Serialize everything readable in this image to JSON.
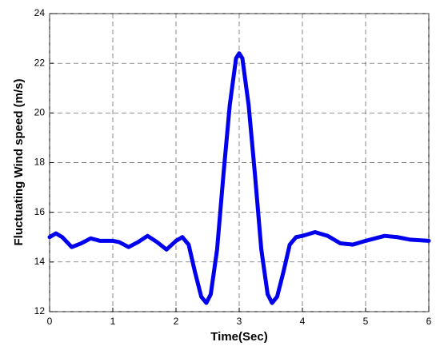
{
  "chart_data": {
    "type": "line",
    "xlabel": "Time(Sec)",
    "ylabel": "Fluctuating Wind speed (m/s)",
    "x": [
      0,
      0.1,
      0.2,
      0.35,
      0.5,
      0.65,
      0.8,
      1.0,
      1.1,
      1.25,
      1.4,
      1.55,
      1.7,
      1.85,
      2.0,
      2.1,
      2.2,
      2.3,
      2.4,
      2.48,
      2.55,
      2.65,
      2.75,
      2.85,
      2.95,
      3.0,
      3.05,
      3.15,
      3.25,
      3.35,
      3.45,
      3.52,
      3.6,
      3.7,
      3.8,
      3.9,
      4.0,
      4.2,
      4.4,
      4.6,
      4.8,
      5.0,
      5.3,
      5.5,
      5.7,
      6.0
    ],
    "series": [
      {
        "color": "#0000ee",
        "values": [
          15.0,
          15.15,
          15.0,
          14.6,
          14.75,
          14.95,
          14.85,
          14.85,
          14.8,
          14.6,
          14.8,
          15.05,
          14.8,
          14.5,
          14.85,
          15.0,
          14.7,
          13.6,
          12.6,
          12.35,
          12.7,
          14.5,
          17.5,
          20.3,
          22.2,
          22.4,
          22.2,
          20.3,
          17.5,
          14.5,
          12.7,
          12.35,
          12.6,
          13.6,
          14.7,
          15.0,
          15.05,
          15.2,
          15.05,
          14.75,
          14.7,
          14.85,
          15.05,
          15.0,
          14.9,
          14.85
        ]
      }
    ],
    "xlim": [
      0,
      6
    ],
    "xticks": [
      0,
      1,
      2,
      3,
      4,
      5,
      6
    ],
    "ylim": [
      12,
      24
    ],
    "yticks": [
      12,
      14,
      16,
      18,
      20,
      22,
      24
    ],
    "grid": true
  }
}
